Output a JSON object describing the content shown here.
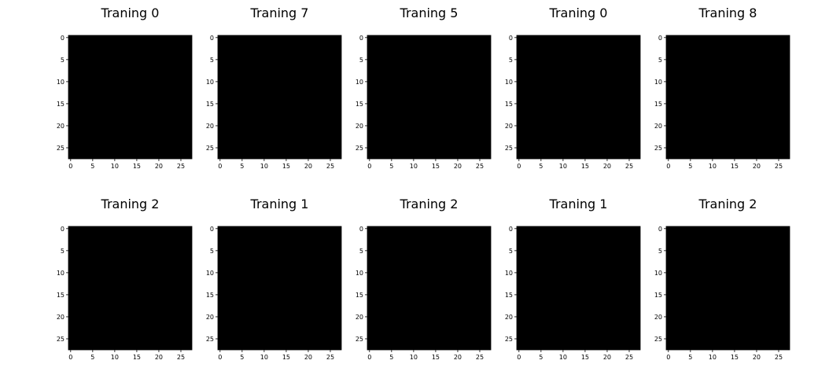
{
  "figure": {
    "panels": [
      {
        "title": "Traning 0",
        "digit": "0",
        "x_ticks": [
          "0",
          "5",
          "10",
          "15",
          "20",
          "25"
        ],
        "y_ticks": [
          "0",
          "5",
          "10",
          "15",
          "20",
          "25"
        ]
      },
      {
        "title": "Traning 7",
        "digit": "7",
        "x_ticks": [
          "0",
          "5",
          "10",
          "15",
          "20",
          "25"
        ],
        "y_ticks": [
          "0",
          "5",
          "10",
          "15",
          "20",
          "25"
        ]
      },
      {
        "title": "Traning 5",
        "digit": "5",
        "x_ticks": [
          "0",
          "5",
          "10",
          "15",
          "20",
          "25"
        ],
        "y_ticks": [
          "0",
          "5",
          "10",
          "15",
          "20",
          "25"
        ]
      },
      {
        "title": "Traning 0",
        "digit": "0",
        "x_ticks": [
          "0",
          "5",
          "10",
          "15",
          "20",
          "25"
        ],
        "y_ticks": [
          "0",
          "5",
          "10",
          "15",
          "20",
          "25"
        ]
      },
      {
        "title": "Traning 8",
        "digit": "8",
        "x_ticks": [
          "0",
          "5",
          "10",
          "15",
          "20",
          "25"
        ],
        "y_ticks": [
          "0",
          "5",
          "10",
          "15",
          "20",
          "25"
        ]
      },
      {
        "title": "Traning 2",
        "digit": "2",
        "x_ticks": [
          "0",
          "5",
          "10",
          "15",
          "20",
          "25"
        ],
        "y_ticks": [
          "0",
          "5",
          "10",
          "15",
          "20",
          "25"
        ]
      },
      {
        "title": "Traning 1",
        "digit": "1",
        "x_ticks": [
          "0",
          "5",
          "10",
          "15",
          "20",
          "25"
        ],
        "y_ticks": [
          "0",
          "5",
          "10",
          "15",
          "20",
          "25"
        ]
      },
      {
        "title": "Traning 2",
        "digit": "2",
        "x_ticks": [
          "0",
          "5",
          "10",
          "15",
          "20",
          "25"
        ],
        "y_ticks": [
          "0",
          "5",
          "10",
          "15",
          "20",
          "25"
        ]
      },
      {
        "title": "Traning 1",
        "digit": "1",
        "x_ticks": [
          "0",
          "5",
          "10",
          "15",
          "20",
          "25"
        ],
        "y_ticks": [
          "0",
          "5",
          "10",
          "15",
          "20",
          "25"
        ]
      },
      {
        "title": "Traning 2",
        "digit": "2",
        "x_ticks": [
          "0",
          "5",
          "10",
          "15",
          "20",
          "25"
        ],
        "y_ticks": [
          "0",
          "5",
          "10",
          "15",
          "20",
          "25"
        ]
      }
    ],
    "image_background": "#000000",
    "stroke_color": "#ffffff",
    "noise_colors": [
      "#000000",
      "#ffffff"
    ],
    "colormap": "gray"
  }
}
